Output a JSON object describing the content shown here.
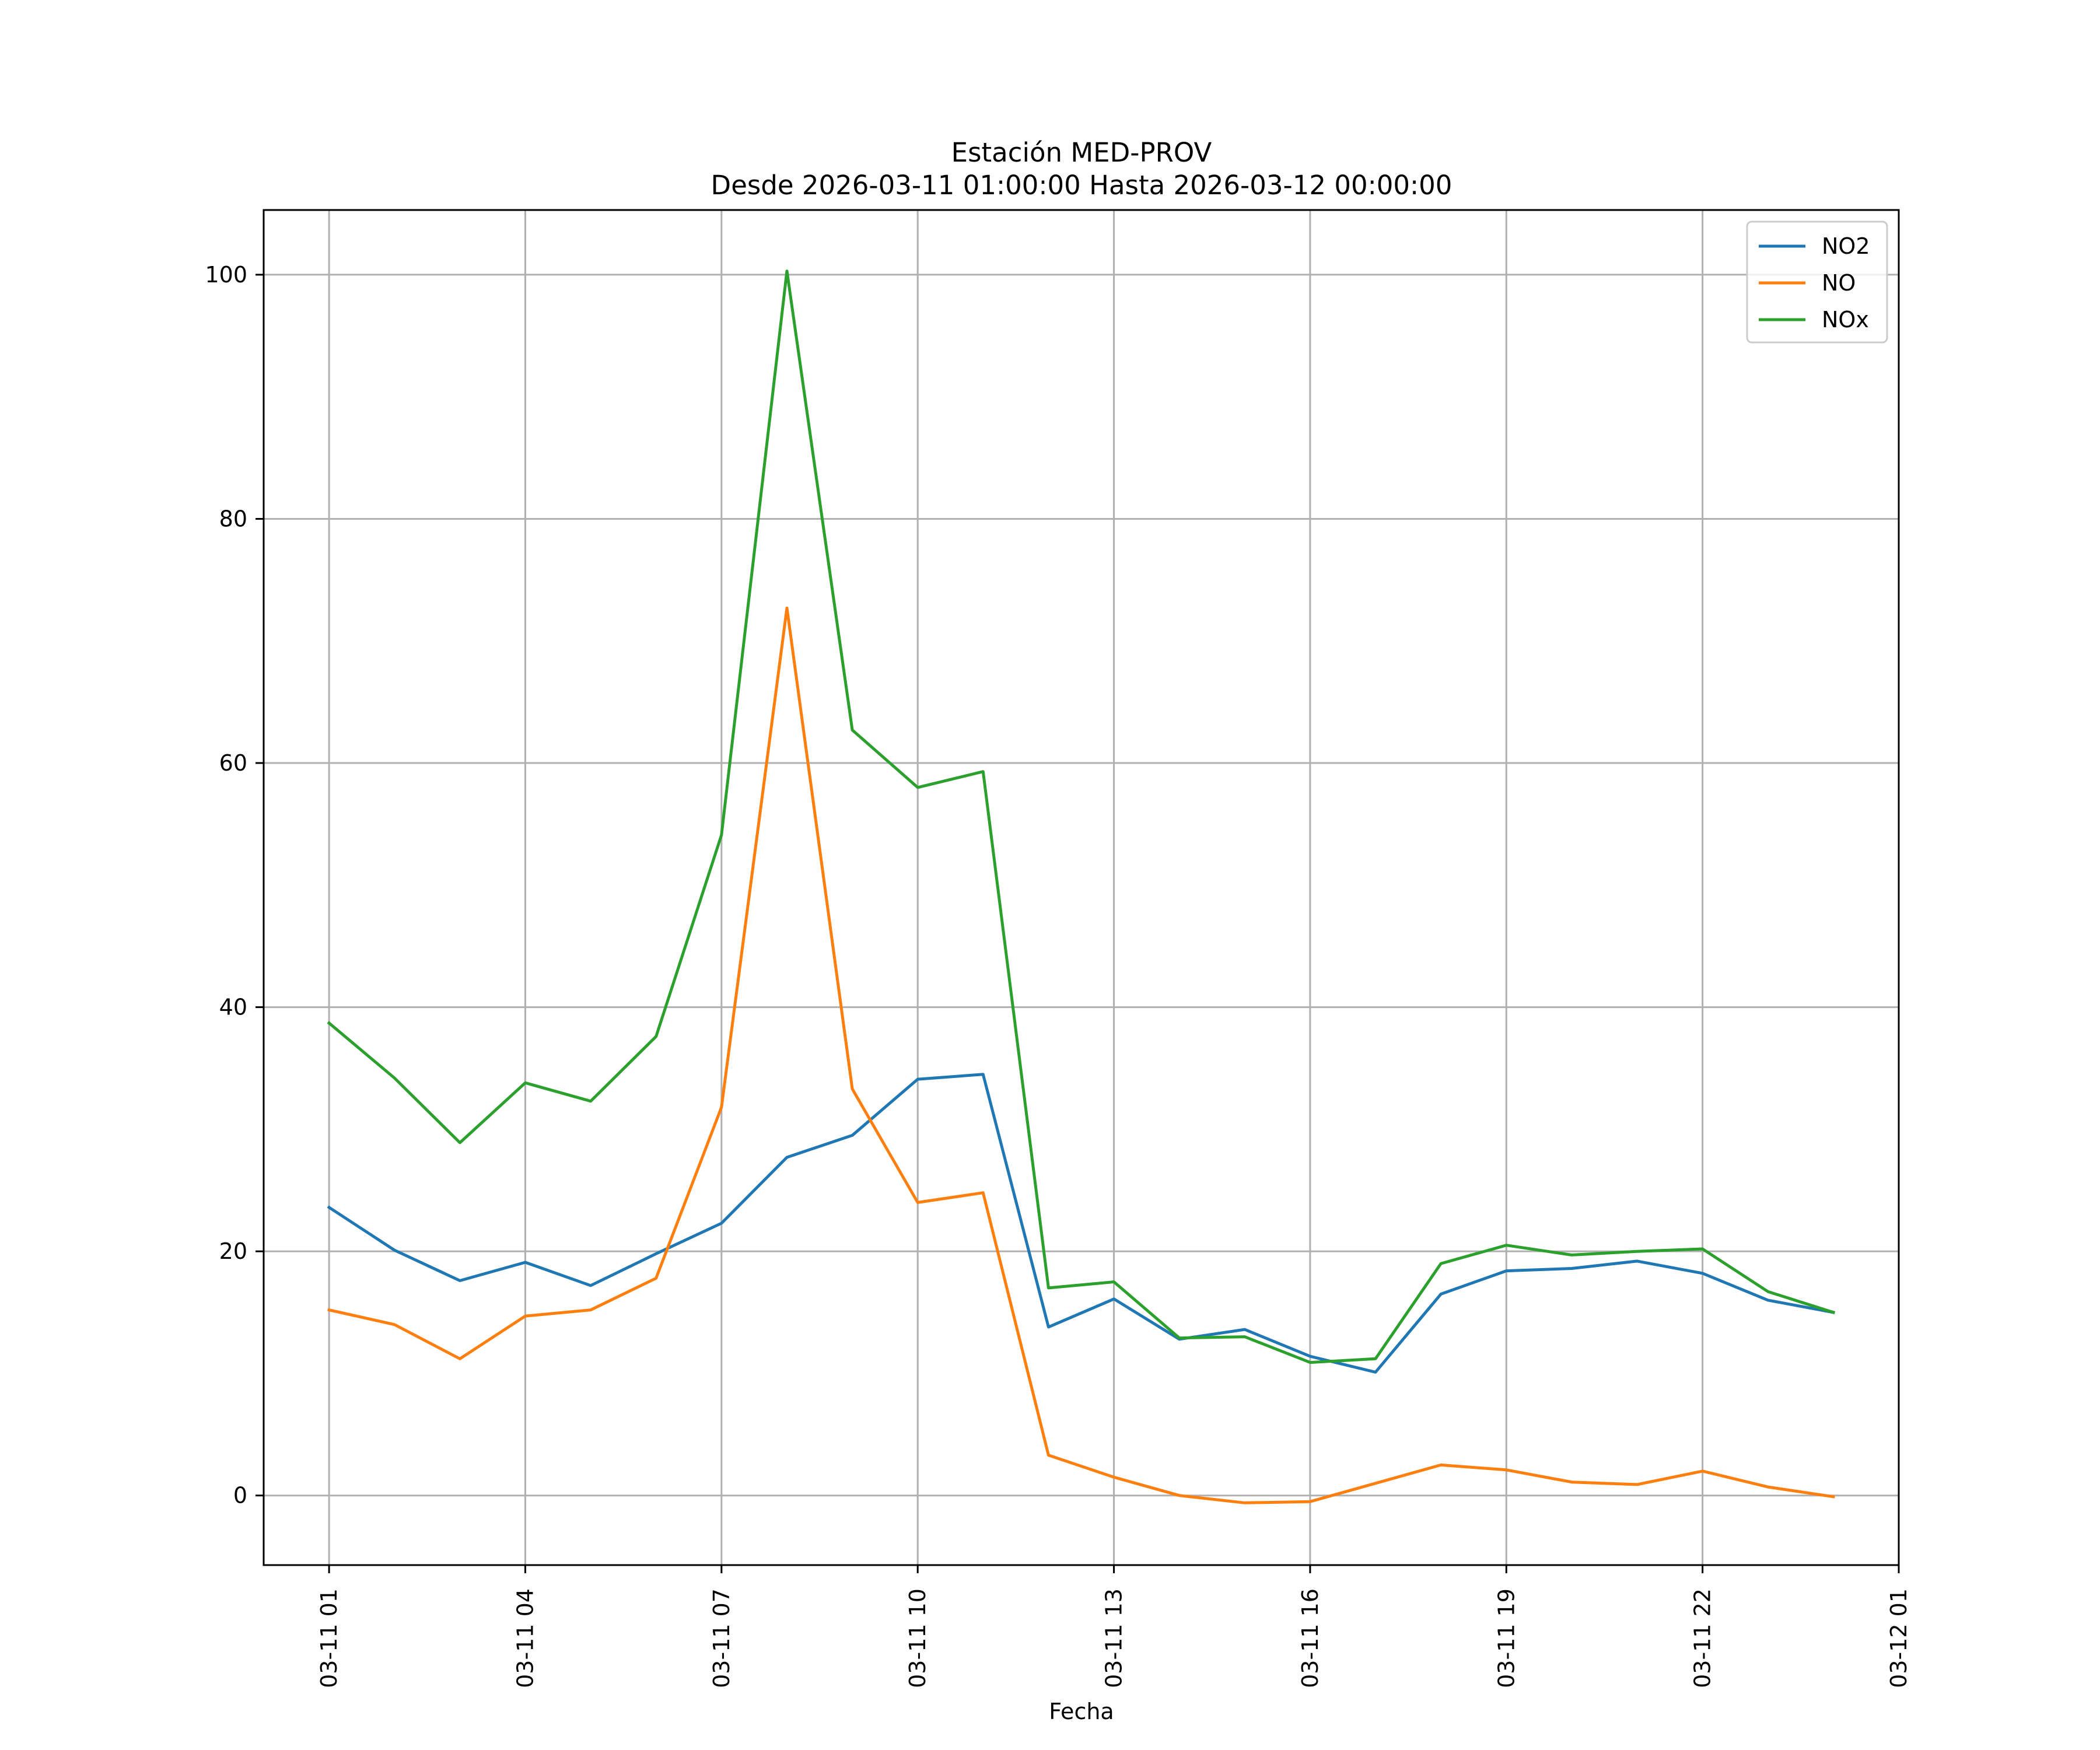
{
  "chart_data": {
    "type": "line",
    "title_line1": "Estación MED-PROV",
    "title_line2": "Desde 2026-03-11 01:00:00 Hasta 2026-03-12 00:00:00",
    "xlabel": "Fecha",
    "ylabel": "",
    "x": [
      "2026-03-11 01:00",
      "2026-03-11 02:00",
      "2026-03-11 03:00",
      "2026-03-11 04:00",
      "2026-03-11 05:00",
      "2026-03-11 06:00",
      "2026-03-11 07:00",
      "2026-03-11 08:00",
      "2026-03-11 09:00",
      "2026-03-11 10:00",
      "2026-03-11 11:00",
      "2026-03-11 12:00",
      "2026-03-11 13:00",
      "2026-03-11 14:00",
      "2026-03-11 15:00",
      "2026-03-11 16:00",
      "2026-03-11 17:00",
      "2026-03-11 18:00",
      "2026-03-11 19:00",
      "2026-03-11 20:00",
      "2026-03-11 21:00",
      "2026-03-11 22:00",
      "2026-03-11 23:00",
      "2026-03-12 00:00"
    ],
    "x_range": [
      "2026-03-11 00:00",
      "2026-03-12 01:00"
    ],
    "xticks": [
      "03-11 01",
      "03-11 04",
      "03-11 07",
      "03-11 10",
      "03-11 13",
      "03-11 16",
      "03-11 19",
      "03-11 22",
      "03-12 01"
    ],
    "xtick_times": [
      "2026-03-11 01:00",
      "2026-03-11 04:00",
      "2026-03-11 07:00",
      "2026-03-11 10:00",
      "2026-03-11 13:00",
      "2026-03-11 16:00",
      "2026-03-11 19:00",
      "2026-03-11 22:00",
      "2026-03-12 01:00"
    ],
    "ylim": [
      -5.7,
      105.3
    ],
    "yticks": [
      0,
      20,
      40,
      60,
      80,
      100
    ],
    "grid": true,
    "legend_position": "top-right",
    "series": [
      {
        "name": "NO2",
        "color": "#1f77b4",
        "values": [
          23.6,
          20.1,
          17.6,
          19.1,
          17.2,
          19.8,
          22.3,
          27.7,
          29.5,
          34.1,
          34.5,
          13.8,
          16.1,
          12.8,
          13.6,
          11.4,
          10.1,
          16.5,
          18.4,
          18.6,
          19.2,
          18.2,
          16.0,
          15.0
        ]
      },
      {
        "name": "NO",
        "color": "#ff7f0e",
        "values": [
          15.2,
          14.0,
          11.2,
          14.7,
          15.2,
          17.8,
          31.8,
          72.7,
          33.3,
          24.0,
          24.8,
          3.3,
          1.5,
          0.0,
          -0.6,
          -0.5,
          1.0,
          2.5,
          2.1,
          1.1,
          0.9,
          2.0,
          0.7,
          -0.1
        ]
      },
      {
        "name": "NOx",
        "color": "#2ca02c",
        "values": [
          38.7,
          34.2,
          28.9,
          33.8,
          32.3,
          37.6,
          54.1,
          100.3,
          62.7,
          58.0,
          59.3,
          17.0,
          17.5,
          12.9,
          13.0,
          10.9,
          11.2,
          19.0,
          20.5,
          19.7,
          20.0,
          20.2,
          16.7,
          15.0
        ]
      }
    ]
  }
}
